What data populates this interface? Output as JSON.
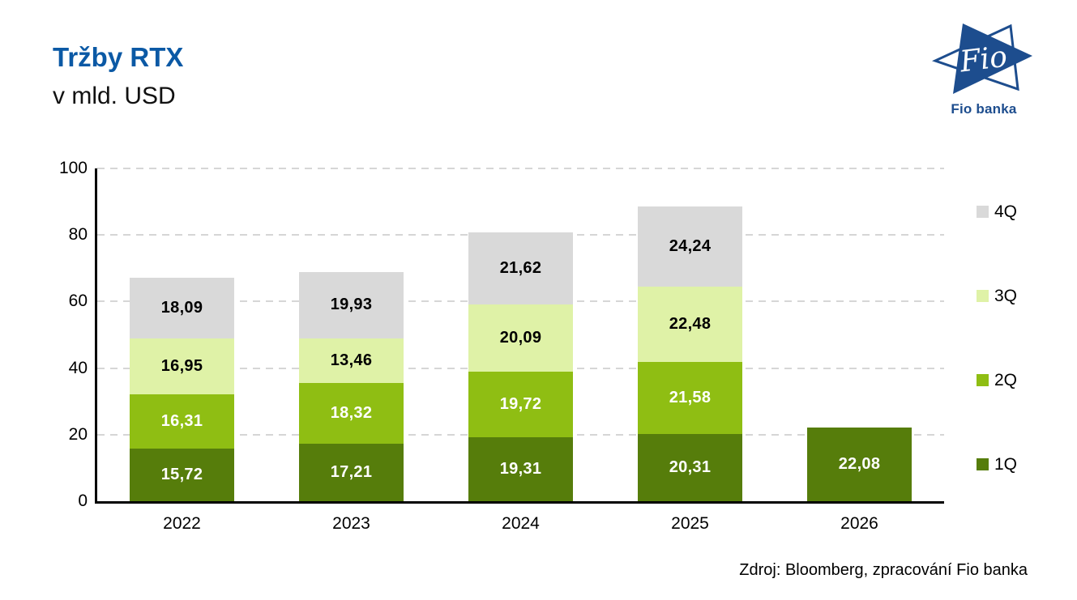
{
  "header": {
    "title": "Tržby RTX",
    "subtitle": "v mld. USD"
  },
  "logo": {
    "text": "Fio",
    "caption": "Fio banka",
    "color": "#1d4d8e"
  },
  "source": "Zdroj: Bloomberg, zpracování Fio banka",
  "chart_data": {
    "type": "bar",
    "stacked": true,
    "title": "Tržby RTX",
    "units": "mld. USD",
    "categories": [
      "2022",
      "2023",
      "2024",
      "2025",
      "2026"
    ],
    "series": [
      {
        "name": "1Q",
        "color": "#567d0b",
        "label_color": "#ffffff",
        "values": [
          15.72,
          17.21,
          19.31,
          20.31,
          22.08
        ]
      },
      {
        "name": "2Q",
        "color": "#8fbe13",
        "label_color": "#ffffff",
        "values": [
          16.31,
          18.32,
          19.72,
          21.58,
          null
        ]
      },
      {
        "name": "3Q",
        "color": "#dff2a7",
        "label_color": "#000000",
        "values": [
          16.95,
          13.46,
          20.09,
          22.48,
          null
        ]
      },
      {
        "name": "4Q",
        "color": "#d9d9d9",
        "label_color": "#000000",
        "values": [
          18.09,
          19.93,
          21.62,
          24.24,
          null
        ]
      }
    ],
    "ylim": [
      0,
      100
    ],
    "yticks": [
      0,
      20,
      40,
      60,
      80,
      100
    ],
    "value_label_decimal_separator": ",",
    "legend_order_top_to_bottom": [
      "4Q",
      "3Q",
      "2Q",
      "1Q"
    ],
    "legend_position": "right",
    "grid": "horizontal-dashed"
  }
}
